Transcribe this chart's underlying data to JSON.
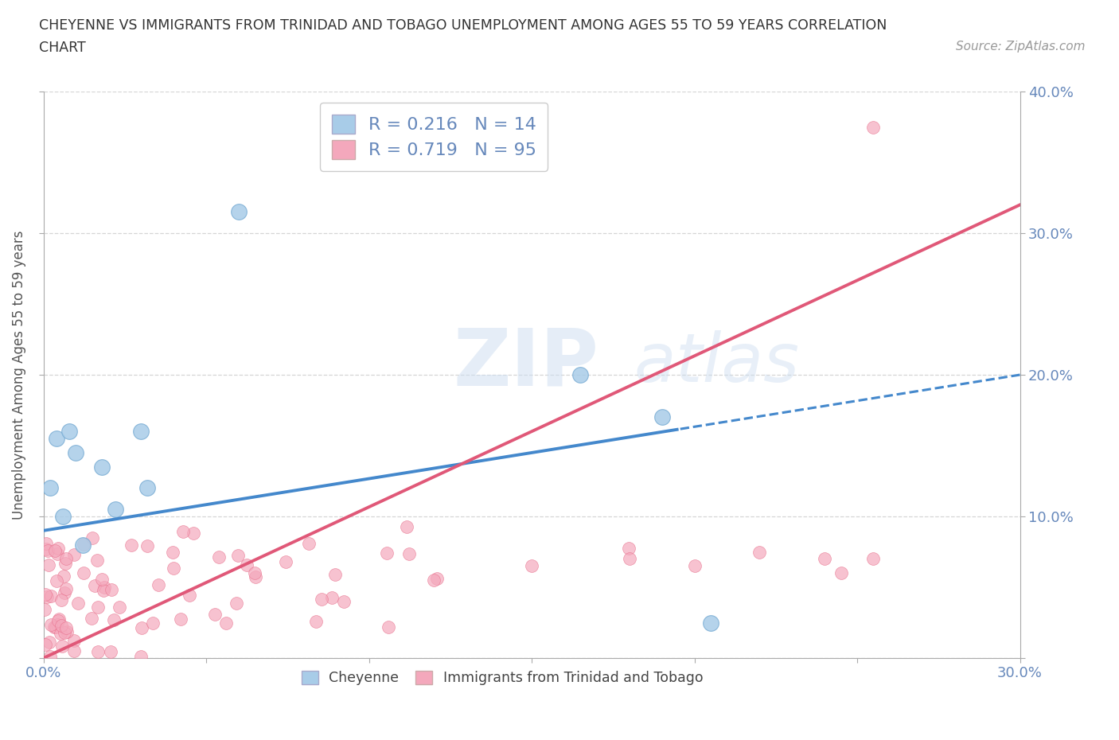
{
  "title_line1": "CHEYENNE VS IMMIGRANTS FROM TRINIDAD AND TOBAGO UNEMPLOYMENT AMONG AGES 55 TO 59 YEARS CORRELATION",
  "title_line2": "CHART",
  "source_text": "Source: ZipAtlas.com",
  "ylabel": "Unemployment Among Ages 55 to 59 years",
  "xlim": [
    0.0,
    0.3
  ],
  "ylim": [
    0.0,
    0.4
  ],
  "cheyenne_color": "#a8cce8",
  "cheyenne_edge": "#7aadd4",
  "immigrants_color": "#f4a8bc",
  "immigrants_edge": "#e8708c",
  "cheyenne_line_color": "#4488cc",
  "immigrants_line_color": "#e05878",
  "cheyenne_R": 0.216,
  "cheyenne_N": 14,
  "immigrants_R": 0.719,
  "immigrants_N": 95,
  "watermark_text": "ZIPAtlas",
  "background_color": "#ffffff",
  "grid_color": "#cccccc",
  "tick_color": "#6688bb",
  "title_color": "#333333",
  "ylabel_color": "#555555",
  "source_color": "#999999",
  "cheyenne_line_y0": 0.09,
  "cheyenne_line_y1": 0.2,
  "immigrants_line_y0": 0.0,
  "immigrants_line_y1": 0.32
}
